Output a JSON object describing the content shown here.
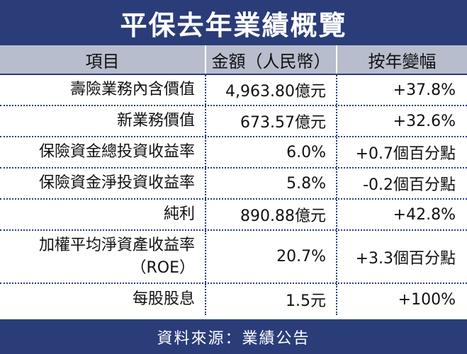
{
  "title": "平保去年業績概覽",
  "headers": [
    "項目",
    "金額（人民幣）",
    "按年變幅"
  ],
  "rows": [
    {
      "item": [
        "壽險業務內含價值"
      ],
      "amount": "4,963.80億元",
      "change": "+37.8%"
    },
    {
      "item": [
        "新業務價值"
      ],
      "amount": "673.57億元",
      "change": "+32.6%"
    },
    {
      "item": [
        "保險資金總投資收益率"
      ],
      "amount": "6.0%",
      "change": "+0.7個百分點"
    },
    {
      "item": [
        "保險資金淨投資收益率"
      ],
      "amount": "5.8%",
      "change": "-0.2個百分點"
    },
    {
      "item": [
        "純利"
      ],
      "amount": "890.88億元",
      "change": "+42.8%"
    },
    {
      "item": [
        "加權平均淨資產收益率",
        "（ROE）"
      ],
      "amount": "20.7%",
      "change": "+3.3個百分點"
    },
    {
      "item": [
        "每股股息"
      ],
      "amount": "1.5元",
      "change": "+100%"
    }
  ],
  "footer": "資料來源：業績公告",
  "colors": {
    "navy": "#2a3d79",
    "header_bg": "#b7bdcc"
  }
}
